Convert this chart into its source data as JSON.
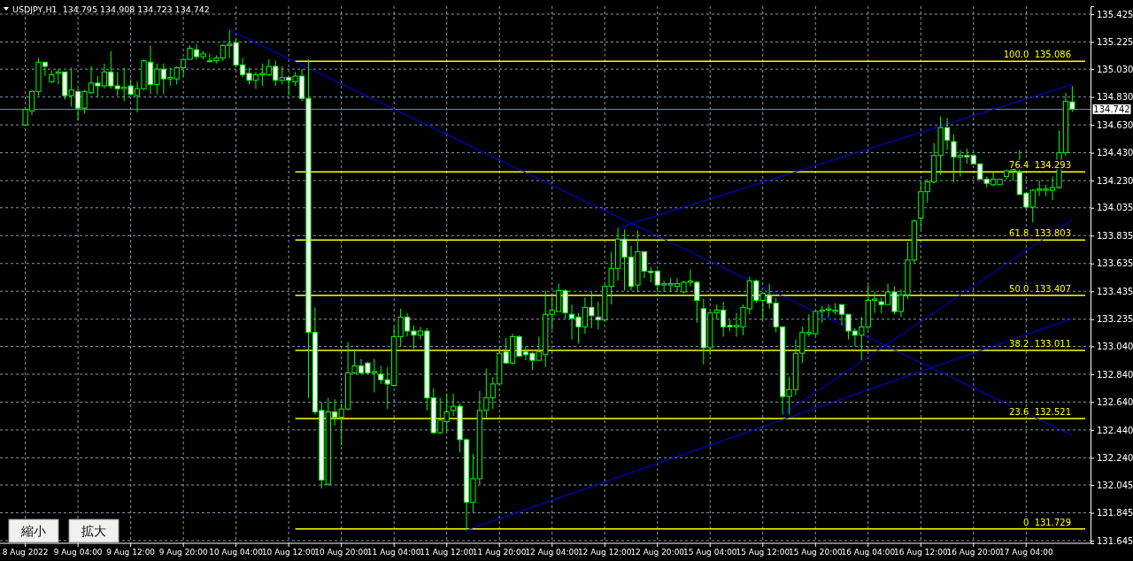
{
  "chart_data": {
    "type": "candlestick",
    "title": "USDJPY,H1  134.795 134.908 134.723 134.742",
    "color": "#00ff00",
    "grid": true,
    "categories": [
      "8 Aug 2022",
      null,
      null,
      null,
      null,
      null,
      null,
      null,
      "9 Aug 04:00",
      null,
      null,
      null,
      null,
      null,
      null,
      null,
      "9 Aug 12:00",
      null,
      null,
      null,
      null,
      null,
      null,
      null,
      "9 Aug 20:00",
      null,
      null,
      null,
      null,
      null,
      null,
      null,
      "10 Aug 04:00",
      null,
      null,
      null,
      null,
      null,
      null,
      null,
      "10 Aug 12:00",
      null,
      null,
      null,
      null,
      null,
      null,
      null,
      "10 Aug 20:00",
      null,
      null,
      null,
      null,
      null,
      null,
      null,
      "11 Aug 04:00",
      null,
      null,
      null,
      null,
      null,
      null,
      null,
      "11 Aug 12:00",
      null,
      null,
      null,
      null,
      null,
      null,
      null,
      "11 Aug 20:00",
      null,
      null,
      null,
      null,
      null,
      null,
      null,
      "12 Aug 04:00",
      null,
      null,
      null,
      null,
      null,
      null,
      null,
      "12 Aug 12:00",
      null,
      null,
      null,
      null,
      null,
      null,
      null,
      "12 Aug 20:00",
      null,
      null,
      null,
      null,
      null,
      null,
      null,
      "15 Aug 04:00",
      null,
      null,
      null,
      null,
      null,
      null,
      null,
      "15 Aug 12:00",
      null,
      null,
      null,
      null,
      null,
      null,
      null,
      "15 Aug 20:00",
      null,
      null,
      null,
      null,
      null,
      null,
      null,
      "16 Aug 04:00",
      null,
      null,
      null,
      null,
      null,
      null,
      null,
      "16 Aug 12:00",
      null,
      null,
      null,
      null,
      null,
      null,
      null,
      "16 Aug 20:00",
      null,
      null,
      null,
      null,
      null,
      null,
      null,
      "17 Aug 04:00",
      null,
      null,
      null,
      null,
      null,
      null,
      null
    ],
    "ohlc": [
      [
        134.63,
        134.75,
        134.62,
        134.74
      ],
      [
        134.73,
        134.88,
        134.7,
        134.87
      ],
      [
        134.87,
        135.11,
        134.84,
        135.08
      ],
      [
        135.08,
        135.08,
        134.98,
        135.05
      ],
      [
        134.94,
        135.02,
        134.93,
        134.99
      ],
      [
        135.0,
        135.03,
        134.92,
        135.01
      ],
      [
        135.01,
        135.01,
        134.81,
        134.84
      ],
      [
        134.84,
        135.04,
        134.76,
        134.88
      ],
      [
        134.87,
        134.89,
        134.66,
        134.75
      ],
      [
        134.75,
        134.88,
        134.71,
        134.87
      ],
      [
        134.86,
        135.05,
        134.85,
        134.93
      ],
      [
        134.93,
        134.98,
        134.83,
        134.91
      ],
      [
        134.91,
        135.07,
        134.89,
        135.01
      ],
      [
        135.01,
        135.16,
        134.89,
        134.91
      ],
      [
        134.91,
        135.01,
        134.84,
        134.89
      ],
      [
        134.89,
        135.04,
        134.8,
        134.9
      ],
      [
        134.91,
        134.96,
        134.84,
        134.85
      ],
      [
        134.84,
        134.94,
        134.72,
        134.89
      ],
      [
        134.89,
        135.1,
        134.88,
        135.09
      ],
      [
        135.08,
        135.2,
        134.85,
        134.92
      ],
      [
        134.92,
        135.07,
        134.85,
        135.03
      ],
      [
        135.03,
        135.07,
        134.85,
        134.96
      ],
      [
        134.96,
        135.04,
        134.91,
        134.97
      ],
      [
        134.96,
        135.05,
        134.92,
        135.04
      ],
      [
        135.04,
        135.11,
        134.98,
        135.1
      ],
      [
        135.1,
        135.2,
        135.1,
        135.18
      ],
      [
        135.17,
        135.21,
        135.1,
        135.12
      ],
      [
        135.12,
        135.16,
        135.1,
        135.14
      ],
      [
        135.09,
        135.14,
        135.08,
        135.09
      ],
      [
        135.09,
        135.13,
        135.07,
        135.11
      ],
      [
        135.11,
        135.21,
        135.09,
        135.2
      ],
      [
        135.2,
        135.31,
        135.11,
        135.21
      ],
      [
        135.22,
        135.25,
        135.05,
        135.06
      ],
      [
        135.06,
        135.11,
        134.97,
        134.99
      ],
      [
        135.0,
        135.04,
        134.92,
        134.95
      ],
      [
        134.95,
        135.01,
        134.89,
        134.99
      ],
      [
        134.99,
        135.07,
        134.91,
        135.0
      ],
      [
        134.99,
        135.1,
        134.98,
        135.05
      ],
      [
        135.05,
        135.09,
        134.91,
        134.95
      ],
      [
        134.95,
        135.05,
        134.92,
        134.97
      ],
      [
        134.97,
        134.98,
        134.84,
        134.95
      ],
      [
        134.94,
        135.01,
        134.91,
        134.98
      ],
      [
        134.98,
        135.03,
        134.8,
        134.82
      ],
      [
        134.82,
        135.1,
        132.67,
        133.14
      ],
      [
        133.14,
        133.32,
        132.55,
        132.57
      ],
      [
        132.58,
        132.64,
        132.02,
        132.08
      ],
      [
        132.05,
        132.67,
        132.04,
        132.57
      ],
      [
        132.57,
        132.66,
        132.47,
        132.53
      ],
      [
        132.53,
        132.63,
        132.33,
        132.59
      ],
      [
        132.59,
        133.07,
        132.58,
        132.85
      ],
      [
        132.85,
        133.02,
        132.84,
        132.9
      ],
      [
        132.9,
        132.95,
        132.84,
        132.85
      ],
      [
        132.92,
        132.93,
        132.84,
        132.85
      ],
      [
        132.85,
        132.95,
        132.71,
        132.86
      ],
      [
        132.84,
        132.9,
        132.77,
        132.8
      ],
      [
        132.8,
        132.89,
        132.59,
        132.77
      ],
      [
        132.76,
        133.18,
        132.75,
        133.11
      ],
      [
        133.11,
        133.31,
        133.04,
        133.25
      ],
      [
        133.25,
        133.28,
        133.11,
        133.15
      ],
      [
        133.15,
        133.19,
        133.02,
        133.12
      ],
      [
        133.12,
        133.18,
        133.09,
        133.15
      ],
      [
        133.15,
        133.17,
        132.58,
        132.67
      ],
      [
        132.67,
        132.74,
        132.41,
        132.42
      ],
      [
        132.42,
        132.67,
        132.41,
        132.51
      ],
      [
        132.5,
        132.7,
        132.43,
        132.57
      ],
      [
        132.58,
        132.7,
        132.54,
        132.61
      ],
      [
        132.61,
        132.63,
        132.28,
        132.37
      ],
      [
        132.37,
        132.38,
        131.72,
        131.92
      ],
      [
        131.92,
        132.27,
        131.85,
        132.09
      ],
      [
        132.09,
        132.72,
        132.05,
        132.58
      ],
      [
        132.58,
        132.88,
        132.53,
        132.67
      ],
      [
        132.67,
        132.82,
        132.59,
        132.77
      ],
      [
        132.77,
        133.03,
        132.77,
        132.99
      ],
      [
        133.0,
        133.1,
        132.92,
        132.92
      ],
      [
        132.92,
        133.13,
        132.91,
        133.11
      ],
      [
        133.11,
        133.12,
        132.97,
        132.97
      ],
      [
        133.0,
        133.04,
        132.94,
        132.98
      ],
      [
        132.99,
        133.0,
        132.87,
        132.94
      ],
      [
        132.94,
        133.11,
        132.94,
        133.0
      ],
      [
        132.98,
        133.44,
        132.89,
        133.27
      ],
      [
        133.27,
        133.4,
        133.16,
        133.3
      ],
      [
        133.29,
        133.49,
        133.29,
        133.44
      ],
      [
        133.44,
        133.45,
        133.24,
        133.28
      ],
      [
        133.27,
        133.34,
        133.09,
        133.24
      ],
      [
        133.25,
        133.28,
        133.06,
        133.18
      ],
      [
        133.18,
        133.39,
        133.13,
        133.32
      ],
      [
        133.32,
        133.43,
        133.17,
        133.26
      ],
      [
        133.25,
        133.36,
        133.16,
        133.23
      ],
      [
        133.23,
        133.48,
        133.22,
        133.47
      ],
      [
        133.47,
        133.72,
        133.34,
        133.6
      ],
      [
        133.6,
        133.89,
        133.51,
        133.81
      ],
      [
        133.81,
        133.88,
        133.44,
        133.68
      ],
      [
        133.68,
        133.76,
        133.44,
        133.47
      ],
      [
        133.48,
        133.87,
        133.43,
        133.72
      ],
      [
        133.72,
        133.72,
        133.53,
        133.58
      ],
      [
        133.58,
        133.61,
        133.5,
        133.57
      ],
      [
        133.58,
        133.59,
        133.43,
        133.48
      ],
      [
        133.48,
        133.51,
        133.43,
        133.49
      ],
      [
        133.48,
        133.53,
        133.43,
        133.49
      ],
      [
        133.47,
        133.53,
        133.43,
        133.49
      ],
      [
        133.43,
        133.51,
        133.42,
        133.5
      ],
      [
        133.5,
        133.59,
        133.47,
        133.51
      ],
      [
        133.5,
        133.51,
        133.21,
        133.37
      ],
      [
        133.31,
        133.38,
        132.91,
        133.03
      ],
      [
        133.03,
        133.29,
        132.98,
        133.28
      ],
      [
        133.28,
        133.34,
        133.23,
        133.3
      ],
      [
        133.3,
        133.36,
        133.11,
        133.18
      ],
      [
        133.19,
        133.23,
        133.15,
        133.18
      ],
      [
        133.18,
        133.28,
        133.11,
        133.19
      ],
      [
        133.18,
        133.34,
        133.12,
        133.32
      ],
      [
        133.31,
        133.54,
        133.27,
        133.51
      ],
      [
        133.51,
        133.52,
        133.35,
        133.37
      ],
      [
        133.37,
        133.43,
        133.23,
        133.42
      ],
      [
        133.41,
        133.49,
        133.31,
        133.35
      ],
      [
        133.35,
        133.39,
        133.14,
        133.18
      ],
      [
        133.18,
        133.18,
        132.55,
        132.68
      ],
      [
        132.68,
        132.82,
        132.55,
        132.73
      ],
      [
        132.73,
        133.09,
        132.69,
        132.99
      ],
      [
        132.99,
        133.18,
        132.92,
        133.14
      ],
      [
        133.13,
        133.27,
        133.11,
        133.14
      ],
      [
        133.13,
        133.29,
        133.12,
        133.29
      ],
      [
        133.29,
        133.33,
        133.21,
        133.3
      ],
      [
        133.3,
        133.34,
        133.25,
        133.31
      ],
      [
        133.29,
        133.35,
        133.27,
        133.3
      ],
      [
        133.34,
        133.34,
        133.19,
        133.27
      ],
      [
        133.27,
        133.27,
        133.09,
        133.15
      ],
      [
        133.15,
        133.17,
        133.04,
        133.12
      ],
      [
        133.12,
        133.25,
        132.94,
        133.18
      ],
      [
        133.18,
        133.48,
        133.16,
        133.37
      ],
      [
        133.37,
        133.43,
        133.28,
        133.38
      ],
      [
        133.36,
        133.39,
        133.28,
        133.34
      ],
      [
        133.34,
        133.49,
        133.34,
        133.43
      ],
      [
        133.43,
        133.47,
        133.27,
        133.29
      ],
      [
        133.29,
        133.45,
        133.25,
        133.41
      ],
      [
        133.41,
        133.79,
        133.38,
        133.66
      ],
      [
        133.66,
        133.95,
        133.64,
        133.94
      ],
      [
        133.96,
        134.22,
        133.88,
        134.15
      ],
      [
        134.15,
        134.24,
        134.07,
        134.22
      ],
      [
        134.22,
        134.5,
        134.21,
        134.41
      ],
      [
        134.41,
        134.69,
        134.27,
        134.61
      ],
      [
        134.61,
        134.68,
        134.45,
        134.52
      ],
      [
        134.51,
        134.56,
        134.22,
        134.4
      ],
      [
        134.4,
        134.45,
        134.26,
        134.41
      ],
      [
        134.41,
        134.46,
        134.35,
        134.4
      ],
      [
        134.41,
        134.42,
        134.35,
        134.35
      ],
      [
        134.35,
        134.35,
        134.24,
        134.24
      ],
      [
        134.24,
        134.26,
        134.18,
        134.21
      ],
      [
        134.2,
        134.29,
        134.19,
        134.24
      ],
      [
        134.2,
        134.24,
        134.2,
        134.24
      ],
      [
        134.26,
        134.31,
        134.24,
        134.3
      ],
      [
        134.3,
        134.31,
        134.23,
        134.31
      ],
      [
        134.29,
        134.45,
        134.13,
        134.13
      ],
      [
        134.14,
        134.14,
        134.03,
        134.04
      ],
      [
        134.04,
        134.17,
        133.93,
        134.16
      ],
      [
        134.16,
        134.23,
        134.12,
        134.17
      ],
      [
        134.16,
        134.2,
        134.12,
        134.17
      ],
      [
        134.16,
        134.26,
        134.09,
        134.18
      ],
      [
        134.18,
        134.59,
        134.17,
        134.43
      ],
      [
        134.43,
        134.86,
        134.41,
        134.8
      ],
      [
        134.795,
        134.908,
        134.723,
        134.742
      ]
    ],
    "series": [
      {
        "type": "line",
        "color": "#0000ff",
        "values": [
          null,
          null,
          null,
          null,
          null,
          null,
          null,
          null,
          null,
          null,
          null,
          null,
          null,
          null,
          null,
          null,
          null,
          null,
          null,
          null,
          null,
          null,
          null,
          null,
          null,
          null,
          null,
          null,
          null,
          null,
          null,
          135.31,
          null,
          null,
          null,
          null,
          null,
          null,
          null,
          null,
          null,
          null,
          null,
          null,
          null,
          null,
          null,
          null,
          null,
          null,
          null,
          null,
          null,
          null,
          null,
          null,
          null,
          null,
          null,
          null,
          null,
          null,
          null,
          null,
          null,
          null,
          null,
          null,
          null,
          null,
          null,
          null,
          null,
          null,
          null,
          null,
          null,
          null,
          null,
          null,
          null,
          null,
          null,
          null,
          null,
          null,
          null,
          null,
          null,
          null,
          null,
          null,
          null,
          null,
          null,
          null,
          null,
          null,
          null,
          null,
          null,
          null,
          null,
          null,
          null,
          null,
          null,
          null,
          null,
          null,
          null,
          null,
          null,
          null,
          null,
          null,
          null,
          null,
          null,
          null,
          null,
          null,
          null,
          null,
          null,
          null,
          null,
          null,
          null,
          null,
          null,
          null,
          null,
          null,
          null,
          null,
          null,
          null,
          null,
          null,
          null,
          null,
          null,
          null,
          null,
          null,
          null,
          null,
          null,
          null,
          null,
          null,
          null,
          null,
          null,
          null,
          null,
          null,
          null,
          132.4
        ]
      },
      {
        "type": "line",
        "color": "#0000ff",
        "values": [
          null,
          null,
          null,
          null,
          null,
          null,
          null,
          null,
          null,
          null,
          null,
          null,
          null,
          null,
          null,
          null,
          null,
          null,
          null,
          null,
          null,
          null,
          null,
          null,
          null,
          null,
          null,
          null,
          null,
          null,
          null,
          null,
          null,
          null,
          null,
          null,
          null,
          null,
          null,
          null,
          null,
          null,
          null,
          null,
          null,
          null,
          null,
          null,
          null,
          null,
          null,
          null,
          null,
          null,
          null,
          null,
          null,
          null,
          null,
          null,
          null,
          null,
          null,
          null,
          null,
          null,
          null,
          131.72,
          null,
          null,
          null,
          null,
          null,
          null,
          null,
          null,
          null,
          null,
          null,
          null,
          null,
          null,
          null,
          null,
          null,
          null,
          null,
          null,
          null,
          null,
          null,
          null,
          null,
          null,
          null,
          null,
          null,
          null,
          null,
          null,
          null,
          null,
          null,
          null,
          null,
          null,
          null,
          null,
          null,
          null,
          null,
          null,
          null,
          null,
          null,
          null,
          null,
          null,
          null,
          null,
          null,
          null,
          null,
          null,
          null,
          null,
          null,
          null,
          null,
          null,
          null,
          null,
          null,
          null,
          null,
          null,
          null,
          null,
          null,
          null,
          null,
          null,
          null,
          null,
          null,
          null,
          null,
          null,
          null,
          null,
          null,
          null,
          null,
          null,
          null,
          null,
          null,
          null,
          null,
          133.24
        ]
      },
      {
        "type": "line",
        "color": "#0000ff",
        "values": [
          null,
          null,
          null,
          null,
          null,
          null,
          null,
          null,
          null,
          null,
          null,
          null,
          null,
          null,
          null,
          null,
          null,
          null,
          null,
          null,
          null,
          null,
          null,
          null,
          null,
          null,
          null,
          null,
          null,
          null,
          null,
          null,
          null,
          null,
          null,
          null,
          null,
          null,
          null,
          null,
          null,
          null,
          null,
          null,
          null,
          null,
          null,
          null,
          null,
          null,
          null,
          null,
          null,
          null,
          null,
          null,
          null,
          null,
          null,
          null,
          null,
          null,
          null,
          null,
          null,
          null,
          null,
          null,
          null,
          null,
          null,
          null,
          null,
          null,
          null,
          null,
          null,
          null,
          null,
          null,
          null,
          null,
          null,
          null,
          null,
          null,
          null,
          null,
          null,
          null,
          133.89,
          null,
          null,
          null,
          null,
          null,
          null,
          null,
          null,
          null,
          null,
          null,
          null,
          null,
          null,
          null,
          null,
          null,
          null,
          null,
          null,
          null,
          null,
          null,
          null,
          null,
          null,
          null,
          null,
          null,
          null,
          null,
          null,
          null,
          null,
          null,
          null,
          null,
          null,
          null,
          null,
          null,
          null,
          null,
          null,
          null,
          null,
          null,
          null,
          null,
          null,
          null,
          null,
          null,
          null,
          null,
          null,
          null,
          null,
          null,
          null,
          null,
          null,
          null,
          null,
          null,
          null,
          null,
          null,
          134.92
        ]
      },
      {
        "type": "line",
        "color": "#0000ff",
        "values": [
          null,
          null,
          null,
          null,
          null,
          null,
          null,
          null,
          null,
          null,
          null,
          null,
          null,
          null,
          null,
          null,
          null,
          null,
          null,
          null,
          null,
          null,
          null,
          null,
          null,
          null,
          null,
          null,
          null,
          null,
          null,
          null,
          null,
          null,
          null,
          null,
          null,
          null,
          null,
          null,
          null,
          null,
          null,
          null,
          null,
          null,
          null,
          null,
          null,
          null,
          null,
          null,
          null,
          null,
          null,
          null,
          null,
          null,
          null,
          null,
          null,
          null,
          null,
          null,
          null,
          null,
          null,
          null,
          null,
          null,
          null,
          null,
          null,
          null,
          null,
          null,
          null,
          null,
          null,
          null,
          null,
          null,
          null,
          null,
          null,
          null,
          null,
          null,
          null,
          null,
          null,
          null,
          null,
          null,
          null,
          null,
          null,
          null,
          null,
          null,
          null,
          null,
          null,
          null,
          null,
          null,
          null,
          null,
          null,
          null,
          null,
          null,
          null,
          null,
          null,
          132.55,
          null,
          null,
          null,
          null,
          null,
          null,
          null,
          null,
          null,
          null,
          null,
          null,
          null,
          null,
          null,
          null,
          null,
          null,
          null,
          null,
          null,
          null,
          null,
          null,
          null,
          null,
          null,
          null,
          null,
          null,
          null,
          null,
          null,
          null,
          null,
          null,
          null,
          null,
          null,
          null,
          null,
          null,
          null,
          133.95
        ]
      }
    ],
    "ylim": [
      131.626,
      135.482
    ],
    "yticks": [
      135.425,
      135.225,
      {
        "value": 135.03,
        "label": "135.030"
      },
      {
        "value": 134.83,
        "label": "134.830"
      },
      {
        "value": 134.63,
        "label": "134.630"
      },
      {
        "value": 134.43,
        "label": "134.430"
      },
      {
        "value": 134.23,
        "label": "134.230"
      },
      134.035,
      133.835,
      133.635,
      133.435,
      133.235,
      {
        "value": 133.04,
        "label": "133.040"
      },
      {
        "value": 132.84,
        "label": "132.840"
      },
      {
        "value": 132.64,
        "label": "132.640"
      },
      {
        "value": 132.44,
        "label": "132.440"
      },
      {
        "value": 132.24,
        "label": "132.240"
      },
      132.045,
      131.845,
      131.645
    ],
    "ref_lines": [
      {
        "axis": "y",
        "value": 134.742,
        "label": "134.742",
        "color": "#778899"
      },
      {
        "axis": "y",
        "value": 135.086,
        "label": "100.0  135.086",
        "color": "#ffff00"
      },
      {
        "axis": "y",
        "value": 134.293,
        "label": "76.4  134.293",
        "color": "#ffff00"
      },
      {
        "axis": "y",
        "value": 133.803,
        "label": "61.8  133.803",
        "color": "#ffff00"
      },
      {
        "axis": "y",
        "value": 133.407,
        "label": "50.0  133.407",
        "color": "#ffff00"
      },
      {
        "axis": "y",
        "value": 133.011,
        "label": "38.2  133.011",
        "color": "#ffff00"
      },
      {
        "axis": "y",
        "value": 132.521,
        "label": "23.6  132.521",
        "color": "#ffff00"
      },
      {
        "axis": "y",
        "value": 131.729,
        "label": "0  131.729",
        "color": "#ffff00"
      }
    ],
    "annotations": [
      "縮小",
      "拡大"
    ]
  }
}
